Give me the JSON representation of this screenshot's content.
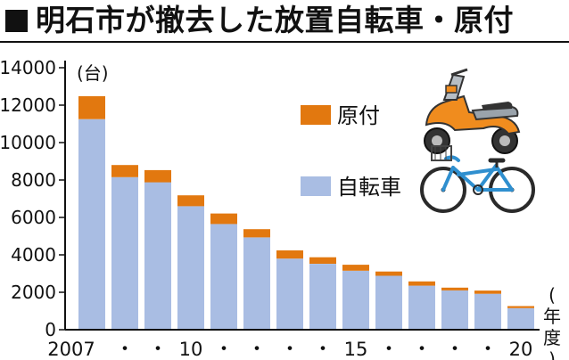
{
  "header": {
    "title": "明石市が撤去した放置自転車・原付"
  },
  "chart_data": {
    "type": "bar",
    "stacked": true,
    "y_unit": "(台)",
    "x_unit": "(年度)",
    "categories": [
      "2007",
      "2008",
      "2009",
      "2010",
      "2011",
      "2012",
      "2013",
      "2014",
      "2015",
      "2016",
      "2017",
      "2018",
      "2019",
      "2020"
    ],
    "x_tick_labels": [
      "2007",
      "・",
      "・",
      "10",
      "・",
      "・",
      "・",
      "・",
      "15",
      "・",
      "・",
      "・",
      "・",
      "20"
    ],
    "ylim": [
      0,
      14000
    ],
    "y_ticks": [
      0,
      2000,
      4000,
      6000,
      8000,
      10000,
      12000,
      14000
    ],
    "y_tick_labels": [
      "0",
      "2000",
      "4000",
      "6000",
      "8000",
      "10000",
      "12000",
      "14000"
    ],
    "series": [
      {
        "name": "自転車",
        "color": "#a9bde3",
        "values": [
          11250,
          8150,
          7880,
          6600,
          5650,
          4930,
          3800,
          3520,
          3150,
          2880,
          2350,
          2100,
          1920,
          1150
        ]
      },
      {
        "name": "原付",
        "color": "#e2780f",
        "values": [
          1230,
          650,
          650,
          580,
          560,
          440,
          440,
          350,
          320,
          230,
          230,
          150,
          170,
          110
        ]
      }
    ],
    "legend": [
      "原付",
      "自転車"
    ],
    "legend_position": "right",
    "grid": false
  },
  "icons": {
    "scooter": "scooter-icon",
    "bicycle": "bicycle-icon"
  }
}
